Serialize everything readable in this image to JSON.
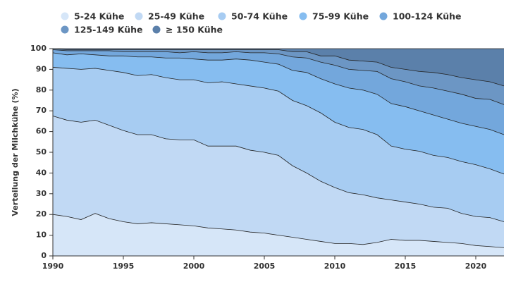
{
  "chart_data": {
    "type": "stacked-area",
    "y_label": "Verteilung der Milchkühe (%)",
    "x": [
      1990,
      1991,
      1992,
      1993,
      1994,
      1995,
      1996,
      1997,
      1998,
      1999,
      2000,
      2001,
      2002,
      2003,
      2004,
      2005,
      2006,
      2007,
      2008,
      2009,
      2010,
      2011,
      2012,
      2013,
      2014,
      2015,
      2016,
      2017,
      2018,
      2019,
      2020,
      2021,
      2022
    ],
    "xlim": [
      1990,
      2022
    ],
    "xticks": [
      1990,
      1995,
      2000,
      2005,
      2010,
      2015,
      2020
    ],
    "ylim": [
      0,
      100
    ],
    "yticks": [
      0,
      10,
      20,
      30,
      40,
      50,
      60,
      70,
      80,
      90,
      100
    ],
    "series": [
      {
        "name": "5-24 Kühe",
        "color": "#d6e6f8",
        "values": [
          20,
          19,
          17.5,
          20.5,
          18,
          16.5,
          15.5,
          16,
          15.5,
          15,
          14.5,
          13.5,
          13,
          12.5,
          11.5,
          11,
          10,
          9,
          8,
          7,
          6,
          6,
          5.5,
          6.5,
          8,
          7.5,
          7.5,
          7,
          6.5,
          6,
          5,
          4.5,
          4
        ]
      },
      {
        "name": "25-49 Kühe",
        "color": "#c1d9f4",
        "values": [
          47.5,
          46.5,
          47,
          45,
          45,
          44,
          43,
          42.5,
          41,
          41,
          41.5,
          39.5,
          40,
          40.5,
          39.5,
          39,
          38.5,
          34.5,
          32,
          29,
          27,
          24.5,
          24,
          21.5,
          19,
          18.5,
          17.5,
          16.5,
          16.5,
          14.5,
          14,
          14,
          12.5
        ]
      },
      {
        "name": "50-74 Kühe",
        "color": "#a7ccf2",
        "values": [
          23.5,
          25,
          25.5,
          25,
          26.5,
          28,
          28.5,
          29,
          29.5,
          29,
          29,
          30.5,
          31,
          30,
          31,
          31,
          31,
          31.5,
          32.5,
          33,
          31.5,
          31.5,
          31.5,
          30.5,
          26,
          25.5,
          25.5,
          25,
          24.5,
          25,
          25,
          23.5,
          23
        ]
      },
      {
        "name": "75-99 Kühe",
        "color": "#86bdf0",
        "values": [
          7,
          6.5,
          7.5,
          6.5,
          7,
          8,
          9,
          8.5,
          9.5,
          10.5,
          10,
          11,
          10.5,
          12,
          12.5,
          12.5,
          13,
          14.5,
          16,
          16.5,
          18.5,
          19,
          19,
          19.5,
          20.5,
          20.5,
          19.5,
          19.5,
          18.5,
          18.5,
          18.5,
          19,
          19
        ]
      },
      {
        "name": "100-124 Kühe",
        "color": "#73a7dc",
        "values": [
          1.5,
          2,
          1.5,
          2,
          2.5,
          2,
          2.5,
          2.5,
          3,
          2.5,
          3.5,
          3.5,
          3.5,
          3.5,
          3.5,
          4.5,
          5,
          6.5,
          7,
          8,
          9,
          9,
          9.5,
          11,
          12,
          12,
          12,
          13,
          13.5,
          14,
          13.5,
          14.5,
          14.5
        ]
      },
      {
        "name": "125-149 Kühe",
        "color": "#6c96c4",
        "values": [
          0.5,
          0.5,
          0.5,
          0.5,
          0.5,
          1,
          1,
          1,
          1,
          1.5,
          1,
          1.5,
          1.5,
          1,
          1.5,
          1.5,
          2,
          2.5,
          3,
          3,
          4.5,
          4.5,
          4.5,
          4.5,
          5.5,
          6,
          7,
          7.5,
          8,
          8,
          9,
          8.5,
          9
        ]
      },
      {
        "name": "≥ 150 Kühe",
        "color": "#5b80aa",
        "values": [
          0,
          0.5,
          0.5,
          0.5,
          0.5,
          0.5,
          0.5,
          0.5,
          0.5,
          0.5,
          0.5,
          0.5,
          0.5,
          0.5,
          0.5,
          0.5,
          0.5,
          1.5,
          1.5,
          3.5,
          3.5,
          5.5,
          6,
          6.5,
          9,
          10,
          11,
          11.5,
          12.5,
          14,
          15,
          16,
          18
        ]
      }
    ]
  }
}
